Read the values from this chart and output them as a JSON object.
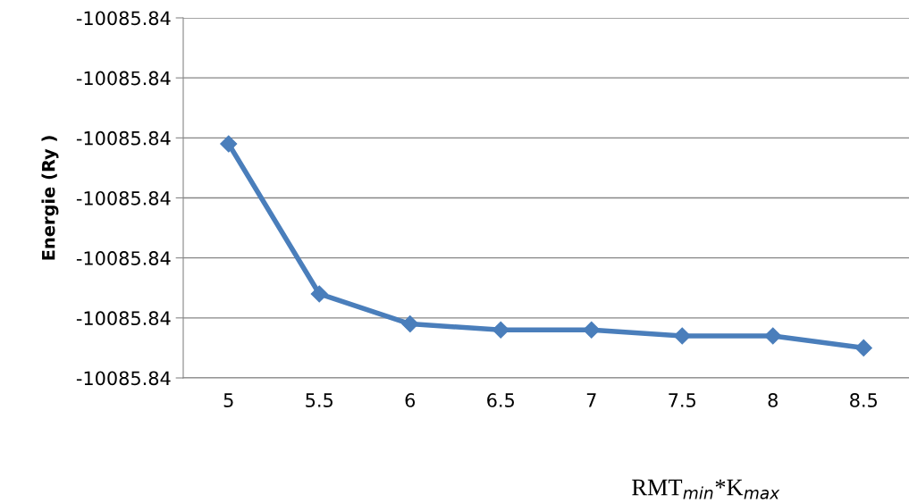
{
  "chart_data": {
    "type": "line",
    "xlabel": "RMT$_{min}$*K$_{max}$",
    "ylabel": "Energie (Ry )",
    "categories": [
      "5",
      "5.5",
      "6",
      "6.5",
      "7",
      "7.5",
      "8",
      "8.5"
    ],
    "series": [
      {
        "color": "#4a7ebb",
        "values": [
          -10085.8401,
          -10085.8426,
          -10085.8431,
          -10085.8432,
          -10085.8432,
          -10085.8433,
          -10085.8433,
          -10085.8435
        ]
      }
    ],
    "ylim": [
      -10085.844,
      -10085.838
    ],
    "yticks": [
      {
        "value": -10085.844,
        "label": "-10085.84"
      },
      {
        "value": -10085.843,
        "label": "-10085.84"
      },
      {
        "value": -10085.842,
        "label": "-10085.84"
      },
      {
        "value": -10085.841,
        "label": "-10085.84"
      },
      {
        "value": -10085.84,
        "label": "-10085.84"
      },
      {
        "value": -10085.839,
        "label": "-10085.84"
      },
      {
        "value": -10085.838,
        "label": "-10085.84"
      }
    ],
    "grid": "y",
    "marker": "diamond",
    "line_style": "solid",
    "legend": false
  }
}
